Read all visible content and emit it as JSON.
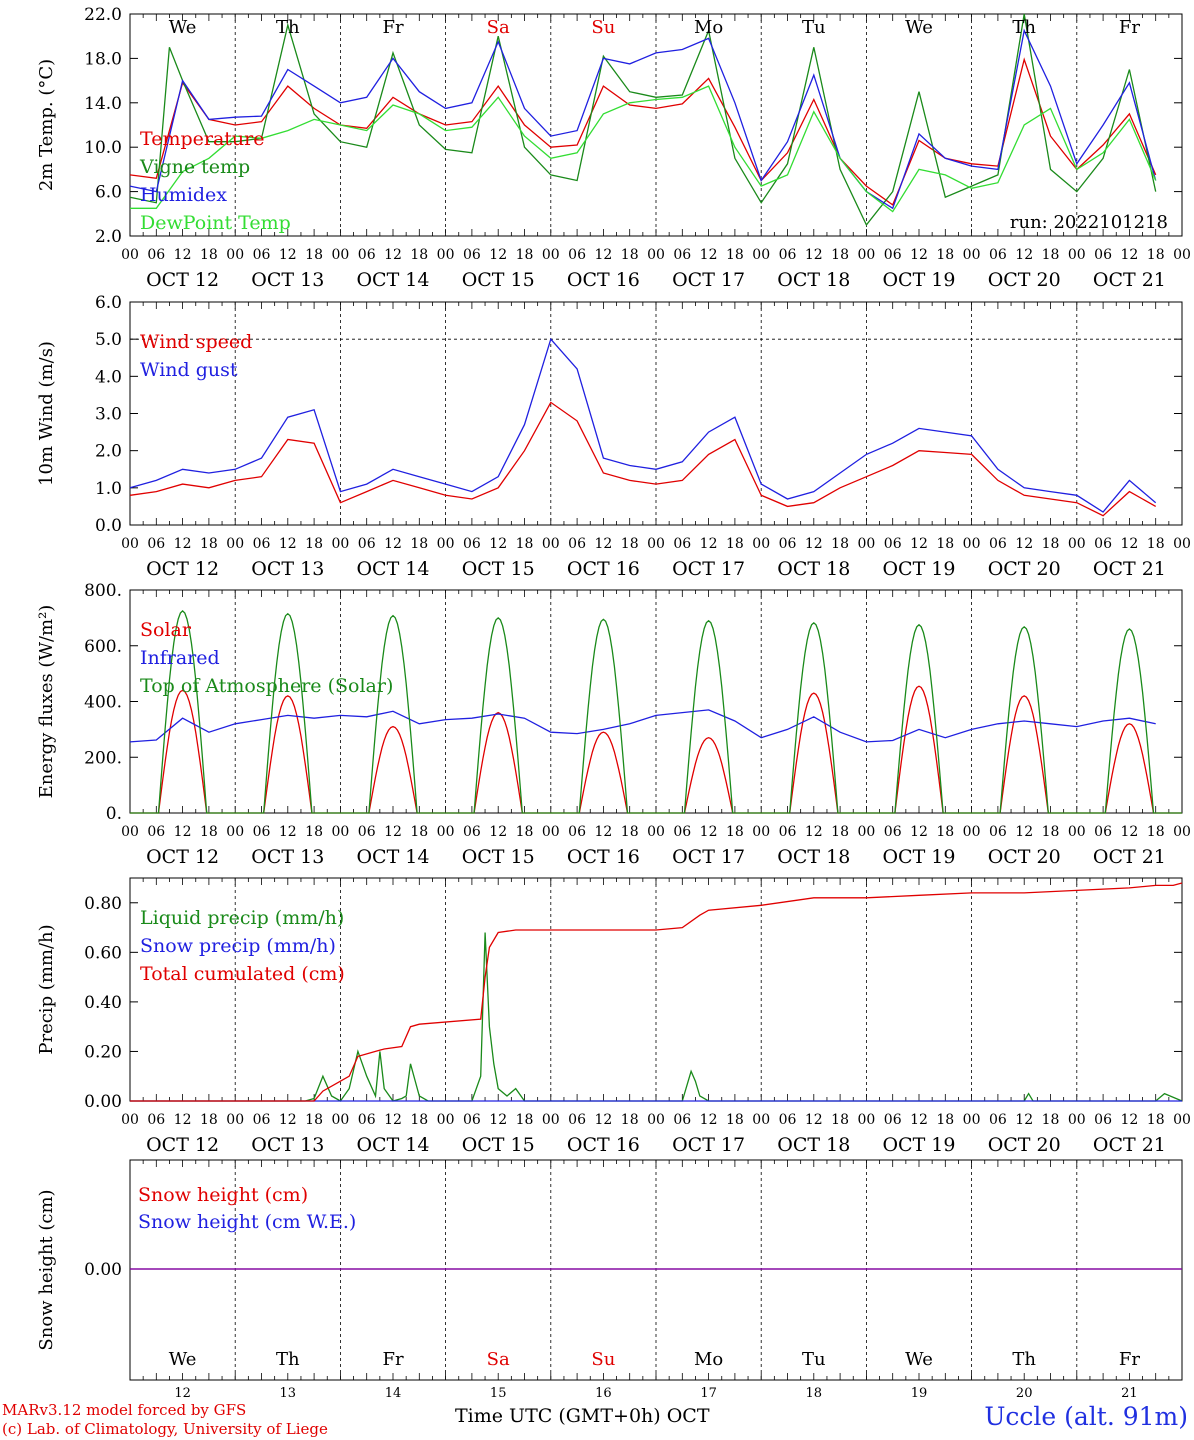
{
  "meta": {
    "run_label": "run: 2022101218",
    "station": "Uccle (alt. 91m)",
    "credit_line1": "MARv3.12 model forced by GFS",
    "credit_line2": "(c) Lab. of Climatology, University of Liege",
    "xaxis_title": "Time UTC (GMT+0h) OCT"
  },
  "colors": {
    "temperature": "#e00000",
    "vigne": "#1a8a1a",
    "humidex": "#2020e0",
    "dewpoint": "#33dd33",
    "weekend": "#e00000",
    "snow_line": "#8000a0"
  },
  "days": {
    "weekday": [
      "We",
      "Th",
      "Fr",
      "Sa",
      "Su",
      "Mo",
      "Tu",
      "We",
      "Th",
      "Fr"
    ],
    "weekend_flags": [
      false,
      false,
      false,
      true,
      true,
      false,
      false,
      false,
      false,
      false
    ],
    "date_labels": [
      "OCT 12",
      "OCT 13",
      "OCT 14",
      "OCT 15",
      "OCT 16",
      "OCT 17",
      "OCT 18",
      "OCT 19",
      "OCT 20",
      "OCT 21"
    ],
    "day_numbers": [
      "12",
      "13",
      "14",
      "15",
      "16",
      "17",
      "18",
      "19",
      "20",
      "21"
    ],
    "hour_ticks": [
      "00",
      "06",
      "12",
      "18"
    ],
    "final_tick": "00"
  },
  "chart_data": [
    {
      "type": "line",
      "ylabel": "2m Temp. (°C)",
      "ylim": [
        2,
        22
      ],
      "yticks": [
        "2.0",
        "6.0",
        "10.0",
        "14.0",
        "18.0",
        "22.0"
      ],
      "x_unit": "hours since OCT 12 00 UTC",
      "legend": [
        "Temperature",
        "Vigne temp",
        "Humidex",
        "DewPoint Temp"
      ],
      "series": [
        {
          "name": "Temperature",
          "color_key": "temperature",
          "x": [
            0,
            6,
            12,
            18,
            24,
            30,
            36,
            42,
            48,
            54,
            60,
            66,
            72,
            78,
            84,
            90,
            96,
            102,
            108,
            114,
            120,
            126,
            132,
            138,
            144,
            150,
            156,
            162,
            168,
            174,
            180,
            186,
            192,
            198,
            204,
            210,
            216,
            222,
            228,
            234
          ],
          "y": [
            7.5,
            7.2,
            15.8,
            12.5,
            12.0,
            12.3,
            15.5,
            13.5,
            12.0,
            11.7,
            14.5,
            13.0,
            12.0,
            12.3,
            15.5,
            12.0,
            10.0,
            10.2,
            15.5,
            13.8,
            13.5,
            13.9,
            16.2,
            11.8,
            7.0,
            9.5,
            14.3,
            9.0,
            6.5,
            4.8,
            10.6,
            9.0,
            8.5,
            8.3,
            17.9,
            11.0,
            8.0,
            10.2,
            13.0,
            7.5
          ]
        },
        {
          "name": "Vigne temp",
          "color_key": "vigne",
          "x": [
            0,
            6,
            9,
            12,
            18,
            24,
            30,
            36,
            42,
            48,
            54,
            60,
            66,
            72,
            78,
            84,
            90,
            96,
            102,
            108,
            114,
            120,
            126,
            132,
            138,
            144,
            150,
            156,
            162,
            168,
            174,
            180,
            186,
            192,
            198,
            204,
            210,
            216,
            222,
            228,
            234
          ],
          "y": [
            5.5,
            5.0,
            19.0,
            16.0,
            10.5,
            10.5,
            10.8,
            21.0,
            13.0,
            10.5,
            10.0,
            18.5,
            12.0,
            9.8,
            9.5,
            20.0,
            10.0,
            7.5,
            7.0,
            18.2,
            15.0,
            14.5,
            14.7,
            20.5,
            9.0,
            5.0,
            8.5,
            19.0,
            8.0,
            3.0,
            6.0,
            15.0,
            5.5,
            6.5,
            7.5,
            22.0,
            8.0,
            6.0,
            9.0,
            17.0,
            6.0
          ]
        },
        {
          "name": "Humidex",
          "color_key": "humidex",
          "x": [
            0,
            6,
            12,
            18,
            24,
            30,
            36,
            42,
            48,
            54,
            60,
            66,
            72,
            78,
            84,
            90,
            96,
            102,
            108,
            114,
            120,
            126,
            132,
            138,
            144,
            150,
            156,
            162,
            168,
            174,
            180,
            186,
            192,
            198,
            204,
            210,
            216,
            222,
            228,
            234
          ],
          "y": [
            6.5,
            6.0,
            16.0,
            12.5,
            12.7,
            12.8,
            17.0,
            15.5,
            14.0,
            14.5,
            18.0,
            15.0,
            13.5,
            14.0,
            19.5,
            13.5,
            11.0,
            11.5,
            18.0,
            17.5,
            18.5,
            18.8,
            19.8,
            14.0,
            7.0,
            10.5,
            16.5,
            9.0,
            6.0,
            4.5,
            11.2,
            9.0,
            8.3,
            8.0,
            20.5,
            15.5,
            8.5,
            12.0,
            15.8,
            7.0
          ]
        },
        {
          "name": "DewPoint Temp",
          "color_key": "dewpoint",
          "x": [
            0,
            6,
            12,
            18,
            24,
            30,
            36,
            42,
            48,
            54,
            60,
            66,
            72,
            78,
            84,
            90,
            96,
            102,
            108,
            114,
            120,
            126,
            132,
            138,
            144,
            150,
            156,
            162,
            168,
            174,
            180,
            186,
            192,
            198,
            204,
            210,
            216,
            222,
            228,
            234
          ],
          "y": [
            4.5,
            4.5,
            7.8,
            9.0,
            11.0,
            10.8,
            11.5,
            12.5,
            12.0,
            11.5,
            13.8,
            13.0,
            11.5,
            11.8,
            14.5,
            11.0,
            9.0,
            9.5,
            13.0,
            14.0,
            14.3,
            14.5,
            15.5,
            10.0,
            6.5,
            7.5,
            13.2,
            9.0,
            6.0,
            4.2,
            8.0,
            7.5,
            6.3,
            6.8,
            12.0,
            13.5,
            8.0,
            9.5,
            12.5,
            7.0
          ]
        }
      ]
    },
    {
      "type": "line",
      "ylabel": "10m Wind (m/s)",
      "ylim": [
        0,
        6
      ],
      "yticks": [
        "0.0",
        "1.0",
        "2.0",
        "3.0",
        "4.0",
        "5.0",
        "6.0"
      ],
      "x_unit": "hours since OCT 12 00 UTC",
      "legend": [
        "Wind speed",
        "Wind gust"
      ],
      "series": [
        {
          "name": "Wind speed",
          "color_key": "temperature",
          "x": [
            0,
            6,
            12,
            18,
            24,
            30,
            36,
            42,
            48,
            54,
            60,
            66,
            72,
            78,
            84,
            90,
            96,
            102,
            108,
            114,
            120,
            126,
            132,
            138,
            144,
            150,
            156,
            162,
            168,
            174,
            180,
            186,
            192,
            198,
            204,
            210,
            216,
            222,
            228,
            234
          ],
          "y": [
            0.8,
            0.9,
            1.1,
            1.0,
            1.2,
            1.3,
            2.3,
            2.2,
            0.6,
            0.9,
            1.2,
            1.0,
            0.8,
            0.7,
            1.0,
            2.0,
            3.3,
            2.8,
            1.4,
            1.2,
            1.1,
            1.2,
            1.9,
            2.3,
            0.8,
            0.5,
            0.6,
            1.0,
            1.3,
            1.6,
            2.0,
            1.95,
            1.9,
            1.2,
            0.8,
            0.7,
            0.6,
            0.25,
            0.9,
            0.5
          ]
        },
        {
          "name": "Wind gust",
          "color_key": "humidex",
          "x": [
            0,
            6,
            12,
            18,
            24,
            30,
            36,
            42,
            48,
            54,
            60,
            66,
            72,
            78,
            84,
            90,
            96,
            102,
            108,
            114,
            120,
            126,
            132,
            138,
            144,
            150,
            156,
            162,
            168,
            174,
            180,
            186,
            192,
            198,
            204,
            210,
            216,
            222,
            228,
            234
          ],
          "y": [
            1.0,
            1.2,
            1.5,
            1.4,
            1.5,
            1.8,
            2.9,
            3.1,
            0.9,
            1.1,
            1.5,
            1.3,
            1.1,
            0.9,
            1.3,
            2.7,
            5.0,
            4.2,
            1.8,
            1.6,
            1.5,
            1.7,
            2.5,
            2.9,
            1.1,
            0.7,
            0.9,
            1.4,
            1.9,
            2.2,
            2.6,
            2.5,
            2.4,
            1.5,
            1.0,
            0.9,
            0.8,
            0.35,
            1.2,
            0.6
          ]
        }
      ]
    },
    {
      "type": "line",
      "ylabel": "Energy fluxes (W/m²)",
      "ylim": [
        0,
        800
      ],
      "yticks": [
        "0.",
        "200.",
        "400.",
        "600.",
        "800."
      ],
      "x_unit": "hours since OCT 12 00 UTC",
      "legend": [
        "Solar",
        "Infrared",
        "Top of Atmosphere (Solar)"
      ],
      "series": [
        {
          "name": "Solar",
          "color_key": "temperature",
          "daily_peaks": [
            440,
            420,
            310,
            360,
            290,
            270,
            430,
            455,
            420,
            320
          ],
          "day_start_hour": 6.5,
          "day_end_hour": 17.5
        },
        {
          "name": "Infrared",
          "color_key": "humidex",
          "x": [
            0,
            6,
            12,
            18,
            24,
            30,
            36,
            42,
            48,
            54,
            60,
            66,
            72,
            78,
            84,
            90,
            96,
            102,
            108,
            114,
            120,
            126,
            132,
            138,
            144,
            150,
            156,
            162,
            168,
            174,
            180,
            186,
            192,
            198,
            204,
            210,
            216,
            222,
            228,
            234
          ],
          "y": [
            255,
            262,
            340,
            290,
            320,
            335,
            350,
            340,
            350,
            345,
            365,
            320,
            335,
            340,
            355,
            340,
            290,
            285,
            300,
            320,
            350,
            360,
            370,
            330,
            270,
            300,
            345,
            290,
            255,
            260,
            300,
            270,
            300,
            320,
            330,
            320,
            310,
            330,
            340,
            320
          ]
        },
        {
          "name": "Top of Atmosphere (Solar)",
          "color_key": "vigne",
          "daily_peaks": [
            725,
            715,
            708,
            700,
            695,
            690,
            682,
            675,
            668,
            660
          ],
          "day_start_hour": 6.5,
          "day_end_hour": 17.5
        }
      ]
    },
    {
      "type": "line",
      "ylabel": "Precip (mm/h)",
      "ylim": [
        0,
        0.9
      ],
      "yticks": [
        "0.00",
        "0.20",
        "0.40",
        "0.60",
        "0.80"
      ],
      "x_unit": "hours since OCT 12 00 UTC",
      "legend": [
        "Liquid precip (mm/h)",
        "Snow precip (mm/h)",
        "Total cumulated (cm)"
      ],
      "series": [
        {
          "name": "Liquid precip (mm/h)",
          "color_key": "vigne",
          "x": [
            0,
            40,
            42,
            44,
            46,
            48,
            50,
            52,
            54,
            56,
            57,
            58,
            60,
            62,
            63,
            64,
            66,
            68,
            72,
            78,
            80,
            81,
            82,
            83,
            84,
            86,
            88,
            90,
            96,
            120,
            126,
            128,
            129,
            130,
            132,
            144,
            204,
            205,
            206,
            234,
            236,
            240
          ],
          "y": [
            0,
            0,
            0.01,
            0.1,
            0.02,
            0,
            0.05,
            0.2,
            0.1,
            0.02,
            0.2,
            0.05,
            0,
            0.01,
            0.02,
            0.15,
            0.02,
            0,
            0,
            0,
            0.1,
            0.68,
            0.3,
            0.15,
            0.05,
            0.02,
            0.05,
            0,
            0,
            0,
            0,
            0.12,
            0.08,
            0.02,
            0,
            0,
            0,
            0.03,
            0,
            0,
            0.03,
            0
          ]
        },
        {
          "name": "Snow precip (mm/h)",
          "color_key": "humidex",
          "x": [
            0,
            240
          ],
          "y": [
            0,
            0
          ]
        },
        {
          "name": "Total cumulated (cm)",
          "color_key": "temperature",
          "x": [
            0,
            42,
            44,
            48,
            50,
            52,
            56,
            58,
            62,
            64,
            66,
            80,
            81,
            82,
            84,
            88,
            120,
            126,
            130,
            132,
            144,
            156,
            168,
            180,
            192,
            204,
            216,
            228,
            234,
            238,
            240
          ],
          "y": [
            0,
            0,
            0.04,
            0.08,
            0.1,
            0.18,
            0.2,
            0.21,
            0.22,
            0.3,
            0.31,
            0.33,
            0.5,
            0.62,
            0.68,
            0.69,
            0.69,
            0.7,
            0.75,
            0.77,
            0.79,
            0.82,
            0.82,
            0.83,
            0.84,
            0.84,
            0.85,
            0.86,
            0.87,
            0.87,
            0.88
          ]
        }
      ]
    },
    {
      "type": "line",
      "ylabel": "Snow height (cm)",
      "yticks": [
        "0.00"
      ],
      "x_unit": "hours since OCT 12 00 UTC",
      "legend": [
        "Snow height (cm)",
        "Snow height (cm W.E.)"
      ],
      "series": [
        {
          "name": "Snow height (cm)",
          "color_key": "temperature",
          "x": [
            0,
            240
          ],
          "y": [
            0,
            0
          ]
        },
        {
          "name": "Snow height (cm W.E.)",
          "color_key": "humidex",
          "x": [
            0,
            240
          ],
          "y": [
            0,
            0
          ]
        }
      ]
    }
  ]
}
